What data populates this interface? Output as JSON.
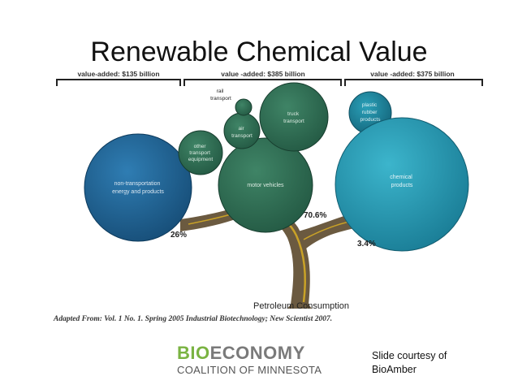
{
  "slide": {
    "title": "Renewable Chemical Value"
  },
  "diagram": {
    "brackets": [
      {
        "label": "value-added: $135 billion"
      },
      {
        "label": "value  -added: $385 billion"
      },
      {
        "label": "value  -added: $375 billion"
      }
    ],
    "bubbles": {
      "rail_transport": [
        "rail",
        "transport"
      ],
      "truck_transport": [
        "truck",
        "transport"
      ],
      "air_transport": [
        "air",
        "transport"
      ],
      "other_transport": [
        "other",
        "transport",
        "equipment"
      ],
      "motor_vehicles": [
        "motor vehicles"
      ],
      "non_transportation": [
        "non-transportation",
        "energy and products"
      ],
      "plastic_rubber": [
        "plastic",
        "rubber",
        "products"
      ],
      "chemical_products": [
        "chemical",
        "products"
      ]
    },
    "percentages": {
      "left": "26%",
      "center": "70.6%",
      "right": "3.4%"
    },
    "trunk_label": "Petroleum Consumption",
    "source": "Adapted From:  Vol. 1 No. 1.  Spring 2005 Industrial Biotechnology; New Scientist 2007."
  },
  "footer": {
    "logo": {
      "bio_part1": "BIO",
      "bio_part2": "ECONOMY",
      "subtitle": "COALITION OF MINNESOTA"
    },
    "courtesy_line1": "Slide courtesy of",
    "courtesy_line2": "BioAmber"
  },
  "colors": {
    "bubble_blue": "#1d5f8e",
    "bubble_green": "#2f6b53",
    "bubble_teal": "#1b7f96",
    "bubble_light_teal": "#1f95b0",
    "branch_brown": "#6b5a40",
    "branch_highlight": "#c9a227",
    "logo_green": "#7ab342"
  }
}
